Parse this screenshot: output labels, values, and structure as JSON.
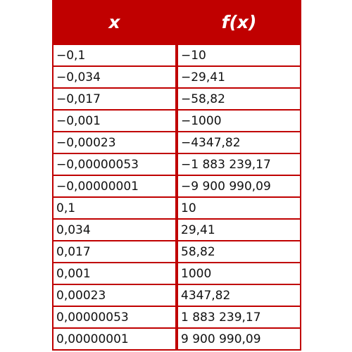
{
  "table": {
    "headers": {
      "x": "x",
      "fx": "f(x)"
    },
    "rows": [
      {
        "x": "−0,1",
        "fx": "−10"
      },
      {
        "x": "−0,034",
        "fx": "−29,41"
      },
      {
        "x": "−0,017",
        "fx": "−58,82"
      },
      {
        "x": "−0,001",
        "fx": "−1000"
      },
      {
        "x": "−0,00023",
        "fx": "−4347,82"
      },
      {
        "x": "−0,00000053",
        "fx": "−1 883 239,17"
      },
      {
        "x": "−0,00000001",
        "fx": "−9 900 990,09"
      },
      {
        "x": "0,1",
        "fx": "10"
      },
      {
        "x": "0,034",
        "fx": "29,41"
      },
      {
        "x": "0,017",
        "fx": "58,82"
      },
      {
        "x": "0,001",
        "fx": "1000"
      },
      {
        "x": "0,00023",
        "fx": "4347,82"
      },
      {
        "x": "0,00000053",
        "fx": "1 883 239,17"
      },
      {
        "x": "0,00000001",
        "fx": "9 900 990,09"
      }
    ],
    "colors": {
      "border": "#c00000",
      "header_text": "#ffffff",
      "cell_bg": "#ffffff"
    }
  }
}
